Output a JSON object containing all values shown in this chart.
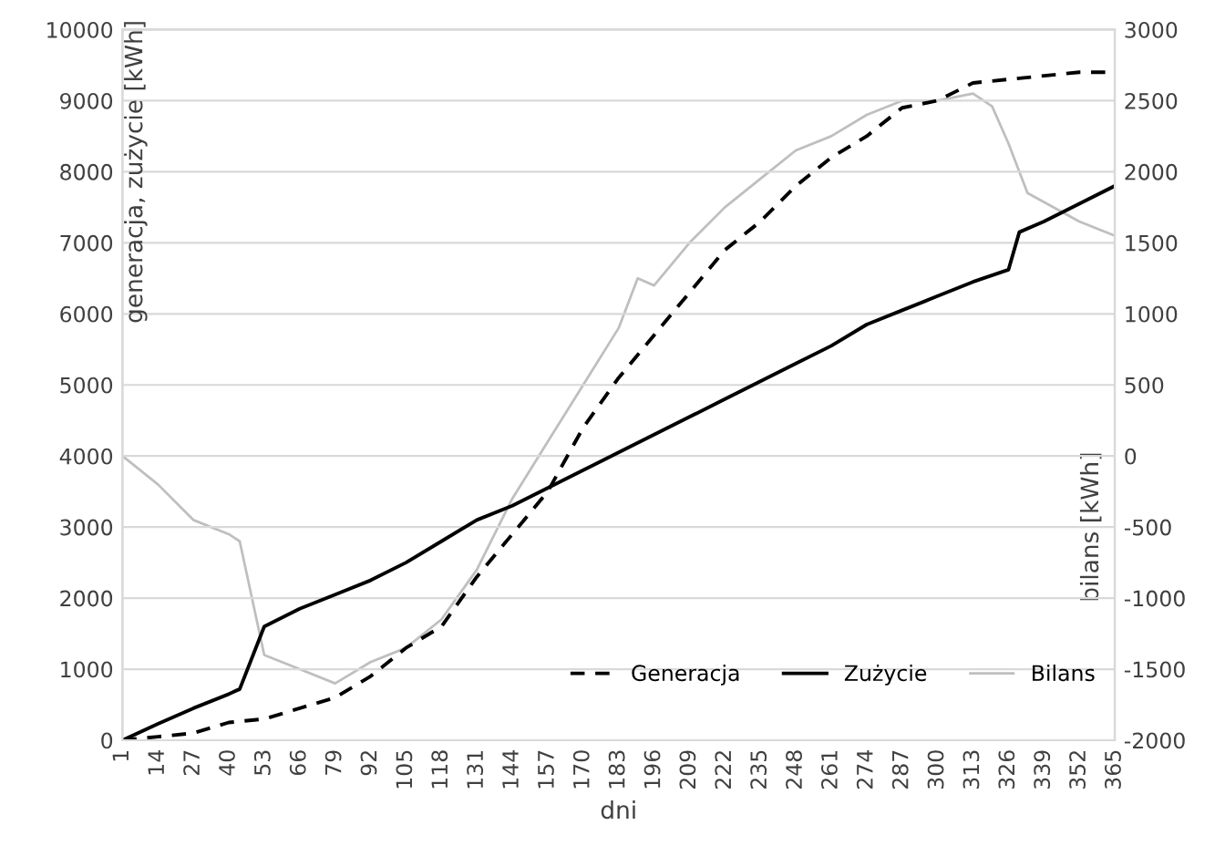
{
  "chart_data": {
    "type": "line",
    "xlabel": "dni",
    "ylabel": "generacja, zużycie [kWh]",
    "y2label": "bilans [kWh]",
    "xlim": [
      1,
      365
    ],
    "xticks": [
      1,
      14,
      27,
      40,
      53,
      66,
      79,
      92,
      105,
      118,
      131,
      144,
      157,
      170,
      183,
      196,
      209,
      222,
      235,
      248,
      261,
      274,
      287,
      300,
      313,
      326,
      339,
      352,
      365
    ],
    "ylim": [
      0,
      10000
    ],
    "yticks": [
      0,
      1000,
      2000,
      3000,
      4000,
      5000,
      6000,
      7000,
      8000,
      9000,
      10000
    ],
    "y2lim": [
      -2000,
      3000
    ],
    "y2ticks": [
      -2000,
      -1500,
      -1000,
      -500,
      0,
      500,
      1000,
      1500,
      2000,
      2500,
      3000
    ],
    "grid": "y",
    "legend": "bottom right",
    "series": [
      {
        "name": "Generacja",
        "color": "#000000",
        "line_style": "dashed",
        "x": [
          1,
          14,
          27,
          40,
          53,
          66,
          79,
          92,
          105,
          118,
          131,
          144,
          157,
          170,
          183,
          196,
          209,
          222,
          235,
          248,
          261,
          274,
          287,
          300,
          313,
          326,
          339,
          352,
          365
        ],
        "values": [
          0,
          50,
          100,
          250,
          300,
          450,
          600,
          900,
          1300,
          1600,
          2300,
          2900,
          3500,
          4400,
          5100,
          5700,
          6300,
          6900,
          7300,
          7800,
          8200,
          8500,
          8900,
          9000,
          9250,
          9300,
          9350,
          9400,
          9400
        ]
      },
      {
        "name": "Zużycie",
        "color": "#000000",
        "line_style": "solid",
        "x": [
          1,
          14,
          27,
          40,
          44,
          53,
          66,
          79,
          92,
          105,
          118,
          131,
          144,
          157,
          170,
          183,
          196,
          209,
          222,
          235,
          248,
          261,
          274,
          287,
          300,
          313,
          326,
          330,
          339,
          352,
          365
        ],
        "values": [
          0,
          230,
          450,
          650,
          720,
          1600,
          1850,
          2050,
          2250,
          2500,
          2800,
          3100,
          3300,
          3550,
          3800,
          4050,
          4300,
          4550,
          4800,
          5050,
          5300,
          5550,
          5850,
          6050,
          6250,
          6450,
          6620,
          7150,
          7300,
          7550,
          7800
        ]
      },
      {
        "name": "Bilans",
        "color": "#bfbfbf",
        "line_style": "solid",
        "axis": "y2",
        "x": [
          1,
          14,
          27,
          40,
          44,
          53,
          66,
          79,
          92,
          105,
          118,
          131,
          144,
          157,
          170,
          183,
          190,
          196,
          209,
          222,
          235,
          248,
          261,
          274,
          287,
          300,
          313,
          320,
          326,
          333,
          352,
          365
        ],
        "values": [
          0,
          -200,
          -450,
          -550,
          -600,
          -1400,
          -1500,
          -1600,
          -1450,
          -1350,
          -1150,
          -800,
          -300,
          100,
          500,
          900,
          1250,
          1200,
          1500,
          1750,
          1950,
          2150,
          2250,
          2400,
          2500,
          2500,
          2550,
          2460,
          2200,
          1850,
          1650,
          1550
        ]
      }
    ]
  }
}
